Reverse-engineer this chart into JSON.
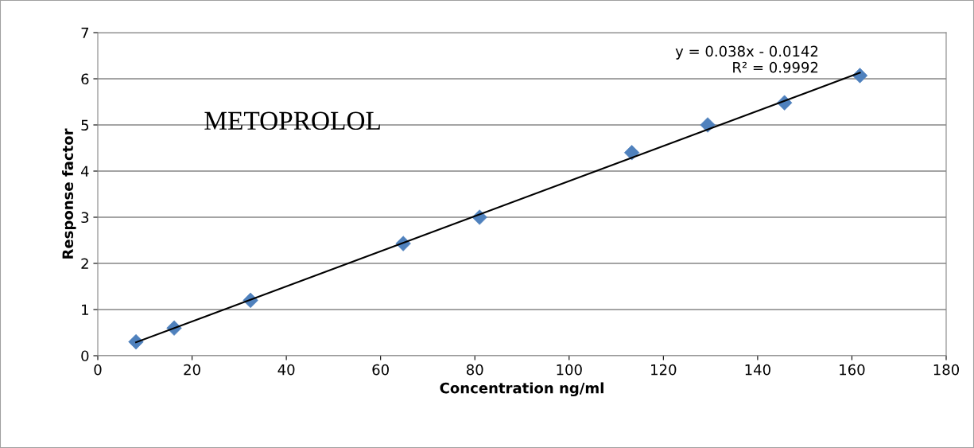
{
  "chart_data": {
    "type": "scatter",
    "xlabel": "Concentration ng/ml",
    "ylabel": "Response factor",
    "annotations": [
      "METOPROLOL",
      "y = 0.038x - 0.0142\nR² = 0.9992"
    ],
    "xlim": [
      0,
      180
    ],
    "xticks": [
      0,
      20,
      40,
      60,
      80,
      100,
      120,
      140,
      160,
      180
    ],
    "ylim": [
      0,
      7
    ],
    "yticks": [
      0,
      1,
      2,
      3,
      4,
      5,
      6,
      7
    ],
    "grid": "y",
    "legend": false,
    "series": [
      {
        "color": "#4f81bd",
        "marker": "diamond",
        "x": [
          8.1,
          16.2,
          32.4,
          64.8,
          81,
          113.3,
          129.4,
          145.7,
          161.7
        ],
        "values": [
          0.3,
          0.6,
          1.2,
          2.43,
          3.0,
          4.4,
          5.0,
          5.48,
          6.07
        ]
      },
      {
        "type": "line",
        "color": "#000000",
        "marker": "none",
        "line_style": "solid",
        "x": [
          8.1,
          161.7
        ],
        "values": [
          0.29,
          6.13
        ]
      }
    ]
  }
}
